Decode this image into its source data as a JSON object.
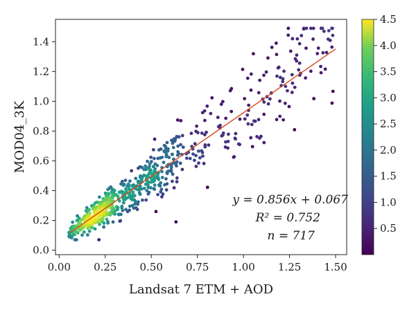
{
  "chart_data": {
    "type": "scatter",
    "xlabel": "Landsat 7 ETM + AOD",
    "ylabel": "MOD04_3K",
    "xlim": [
      -0.02,
      1.56
    ],
    "ylim": [
      -0.03,
      1.55
    ],
    "xticks": [
      0.0,
      0.25,
      0.5,
      0.75,
      1.0,
      1.25,
      1.5
    ],
    "xtick_labels": [
      "0.00",
      "0.25",
      "0.50",
      "0.75",
      "1.00",
      "1.25",
      "1.50"
    ],
    "yticks": [
      0.0,
      0.2,
      0.4,
      0.6,
      0.8,
      1.0,
      1.2,
      1.4
    ],
    "ytick_labels": [
      "0.0",
      "0.2",
      "0.4",
      "0.6",
      "0.8",
      "1.0",
      "1.2",
      "1.4"
    ],
    "grid": false,
    "n_points": 717,
    "density_colorbar": {
      "colormap": "viridis",
      "range": [
        0.0,
        4.5
      ],
      "ticks": [
        0.5,
        1.0,
        1.5,
        2.0,
        2.5,
        3.0,
        3.5,
        4.0,
        4.5
      ],
      "tick_labels": [
        "0.5",
        "1.0",
        "1.5",
        "2.0",
        "2.5",
        "3.0",
        "3.5",
        "4.0",
        "4.5"
      ]
    },
    "regression": {
      "slope": 0.856,
      "intercept": 0.067,
      "x_range": [
        0.06,
        1.5
      ],
      "color": "#d4481e"
    },
    "annotation": {
      "line1": "y = 0.856x + 0.067",
      "line2": "R² = 0.752",
      "line3": "n = 717"
    }
  }
}
